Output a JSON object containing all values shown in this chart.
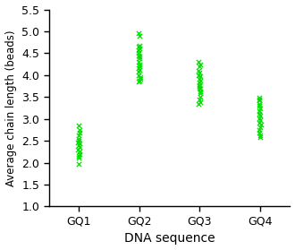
{
  "categories": [
    "GQ1",
    "GQ2",
    "GQ3",
    "GQ4"
  ],
  "x_positions": [
    1,
    2,
    3,
    4
  ],
  "gq1_values": [
    2.85,
    2.75,
    2.68,
    2.62,
    2.55,
    2.5,
    2.47,
    2.44,
    2.4,
    2.36,
    2.3,
    2.25,
    2.2,
    2.16,
    2.12,
    1.97
  ],
  "gq2_values": [
    4.95,
    4.9,
    4.68,
    4.65,
    4.62,
    4.58,
    4.5,
    4.45,
    4.42,
    4.38,
    4.3,
    4.25,
    4.2,
    4.16,
    4.12,
    4.08,
    4.0,
    3.95,
    3.92,
    3.88,
    3.85
  ],
  "gq3_values": [
    4.3,
    4.25,
    4.2,
    4.1,
    4.05,
    4.0,
    3.98,
    3.92,
    3.88,
    3.83,
    3.78,
    3.75,
    3.72,
    3.68,
    3.62,
    3.58,
    3.5,
    3.45,
    3.38,
    3.35
  ],
  "gq4_values": [
    3.48,
    3.45,
    3.42,
    3.35,
    3.3,
    3.25,
    3.18,
    3.12,
    3.08,
    3.02,
    2.98,
    2.92,
    2.88,
    2.82,
    2.75,
    2.68,
    2.62,
    2.58
  ],
  "marker_color": "#00dd00",
  "xlabel": "DNA sequence",
  "ylabel": "Average chain length (beads)",
  "ylim": [
    1.0,
    5.5
  ],
  "yticks": [
    1.0,
    1.5,
    2.0,
    2.5,
    3.0,
    3.5,
    4.0,
    4.5,
    5.0,
    5.5
  ],
  "scatter_jitter": 0.015,
  "figsize": [
    3.3,
    2.79
  ],
  "dpi": 100
}
